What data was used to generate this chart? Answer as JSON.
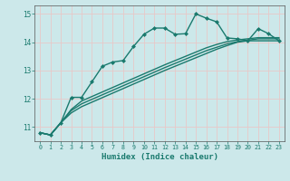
{
  "title": "",
  "xlabel": "Humidex (Indice chaleur)",
  "ylabel": "",
  "bg_color": "#cce8ea",
  "grid_color": "#e8c8c8",
  "line_color": "#1a7a6e",
  "xlim": [
    -0.5,
    23.5
  ],
  "ylim": [
    10.5,
    15.3
  ],
  "yticks": [
    11,
    12,
    13,
    14,
    15
  ],
  "xticks": [
    0,
    1,
    2,
    3,
    4,
    5,
    6,
    7,
    8,
    9,
    10,
    11,
    12,
    13,
    14,
    15,
    16,
    17,
    18,
    19,
    20,
    21,
    22,
    23
  ],
  "series": [
    {
      "x": [
        0,
        1,
        2,
        3,
        4,
        5,
        6,
        7,
        8,
        9,
        10,
        11,
        12,
        13,
        14,
        15,
        16,
        17,
        18,
        19,
        20,
        21,
        22,
        23
      ],
      "y": [
        10.8,
        10.72,
        11.15,
        12.05,
        12.05,
        12.6,
        13.15,
        13.3,
        13.35,
        13.85,
        14.28,
        14.5,
        14.5,
        14.28,
        14.3,
        15.0,
        14.85,
        14.72,
        14.15,
        14.12,
        14.05,
        14.48,
        14.3,
        14.05
      ],
      "marker": true,
      "linewidth": 1.0
    },
    {
      "x": [
        0,
        1,
        2,
        3,
        4,
        5,
        6,
        7,
        8,
        9,
        10,
        11,
        12,
        13,
        14,
        15,
        16,
        17,
        18,
        19,
        20,
        21,
        22,
        23
      ],
      "y": [
        10.8,
        10.72,
        11.15,
        11.5,
        11.72,
        11.88,
        12.04,
        12.2,
        12.36,
        12.52,
        12.68,
        12.84,
        13.0,
        13.15,
        13.3,
        13.45,
        13.6,
        13.75,
        13.88,
        14.0,
        14.05,
        14.05,
        14.05,
        14.05
      ],
      "marker": false,
      "linewidth": 1.0
    },
    {
      "x": [
        0,
        1,
        2,
        3,
        4,
        5,
        6,
        7,
        8,
        9,
        10,
        11,
        12,
        13,
        14,
        15,
        16,
        17,
        18,
        19,
        20,
        21,
        22,
        23
      ],
      "y": [
        10.8,
        10.72,
        11.15,
        11.58,
        11.82,
        11.98,
        12.14,
        12.3,
        12.46,
        12.62,
        12.78,
        12.94,
        13.1,
        13.25,
        13.4,
        13.55,
        13.7,
        13.82,
        13.94,
        14.02,
        14.07,
        14.12,
        14.12,
        14.12
      ],
      "marker": false,
      "linewidth": 1.0
    },
    {
      "x": [
        0,
        1,
        2,
        3,
        4,
        5,
        6,
        7,
        8,
        9,
        10,
        11,
        12,
        13,
        14,
        15,
        16,
        17,
        18,
        19,
        20,
        21,
        22,
        23
      ],
      "y": [
        10.8,
        10.72,
        11.15,
        11.62,
        11.92,
        12.08,
        12.24,
        12.4,
        12.56,
        12.72,
        12.88,
        13.04,
        13.2,
        13.35,
        13.5,
        13.65,
        13.8,
        13.92,
        14.02,
        14.08,
        14.12,
        14.16,
        14.16,
        14.16
      ],
      "marker": false,
      "linewidth": 1.0
    }
  ]
}
